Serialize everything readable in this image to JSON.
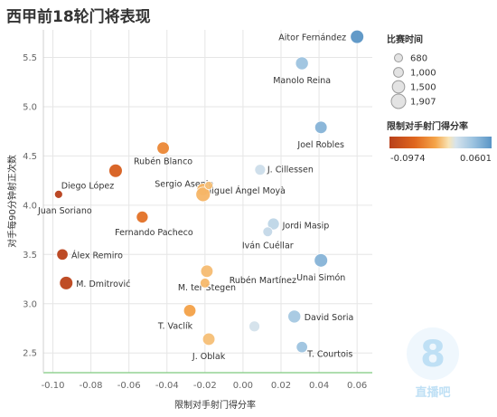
{
  "page": {
    "title": "西甲前18轮门将表现"
  },
  "watermark": {
    "digit": "8",
    "text": "直播吧"
  },
  "chart_data": {
    "type": "scatter",
    "title": "西甲前18轮门将表现",
    "xlabel": "限制对手射门得分率",
    "ylabel": "对手每90分钟射正次数",
    "xlim": [
      -0.105,
      0.068
    ],
    "ylim": [
      2.3,
      5.78
    ],
    "xticks": [
      -0.1,
      -0.08,
      -0.06,
      -0.04,
      -0.02,
      0.0,
      0.02,
      0.04,
      0.06
    ],
    "xtick_labels": [
      "-0.10",
      "-0.08",
      "-0.06",
      "-0.04",
      "-0.02",
      "0.00",
      "0.02",
      "0.04",
      "0.06"
    ],
    "yticks": [
      2.5,
      3.0,
      3.5,
      4.0,
      4.5,
      5.0,
      5.5
    ],
    "ytick_labels": [
      "2.5",
      "3.0",
      "3.5",
      "4.0",
      "4.5",
      "5.0",
      "5.5"
    ],
    "grid": true,
    "size_legend": {
      "title": "比赛时间",
      "values": [
        680,
        1000,
        1500,
        1907
      ],
      "labels": [
        "680",
        "1,000",
        "1,500",
        "1,907"
      ]
    },
    "color_legend": {
      "title": "限制对手射门得分率",
      "min": -0.0974,
      "max": 0.0601,
      "min_label": "-0.0974",
      "max_label": "0.0601",
      "colors": [
        "#b8401b",
        "#e0671f",
        "#f5a54a",
        "#f8e4b6",
        "#d6e3ec",
        "#9cc3e0",
        "#5a95c6"
      ]
    },
    "points": [
      {
        "name": "Aitor Fernández",
        "x": 0.06,
        "y": 5.71,
        "minutes": 1700
      },
      {
        "name": "Manolo Reina",
        "x": 0.031,
        "y": 5.44,
        "minutes": 1600
      },
      {
        "name": "Joel Robles",
        "x": 0.041,
        "y": 4.79,
        "minutes": 1500
      },
      {
        "name": "Rubén Blanco",
        "x": -0.042,
        "y": 4.58,
        "minutes": 1500
      },
      {
        "name": "J. Cillessen",
        "x": 0.009,
        "y": 4.36,
        "minutes": 1200
      },
      {
        "name": "Diego López",
        "x": -0.067,
        "y": 4.35,
        "minutes": 1700
      },
      {
        "name": "Sergio Asenjo",
        "x": -0.021,
        "y": 4.16,
        "minutes": 1500
      },
      {
        "name": "Sergio Asenjo 2",
        "x": -0.021,
        "y": 4.11,
        "minutes": 1900
      },
      {
        "name": "Sergio Asenjo 3",
        "x": -0.018,
        "y": 4.2,
        "minutes": 700
      },
      {
        "name": "Juan Soriano",
        "x": -0.097,
        "y": 4.11,
        "minutes": 680
      },
      {
        "name": "Fernando Pacheco",
        "x": -0.053,
        "y": 3.88,
        "minutes": 1400
      },
      {
        "name": "Jordi Masip",
        "x": 0.016,
        "y": 3.81,
        "minutes": 1400
      },
      {
        "name": "Iván Cuéllar",
        "x": 0.013,
        "y": 3.73,
        "minutes": 1000
      },
      {
        "name": "Álex Remiro",
        "x": -0.095,
        "y": 3.5,
        "minutes": 1300
      },
      {
        "name": "Unai Simón",
        "x": 0.041,
        "y": 3.44,
        "minutes": 1700
      },
      {
        "name": "M. ter Stegen",
        "x": -0.019,
        "y": 3.33,
        "minutes": 1500
      },
      {
        "name": "M. Dmitrović",
        "x": -0.093,
        "y": 3.21,
        "minutes": 1700
      },
      {
        "name": "Rubén Martínez",
        "x": -0.02,
        "y": 3.21,
        "minutes": 1000
      },
      {
        "name": "T. Vaclík",
        "x": -0.028,
        "y": 2.93,
        "minutes": 1500
      },
      {
        "name": "David Soria",
        "x": 0.027,
        "y": 2.87,
        "minutes": 1600
      },
      {
        "name": "Unlabeled",
        "x": 0.006,
        "y": 2.77,
        "minutes": 1200
      },
      {
        "name": "J. Oblak",
        "x": -0.018,
        "y": 2.64,
        "minutes": 1500
      },
      {
        "name": "T. Courtois",
        "x": 0.031,
        "y": 2.56,
        "minutes": 1300
      }
    ],
    "labels": [
      {
        "text": "Aitor Fernández",
        "for": "Aitor Fernández"
      },
      {
        "text": "Manolo Reina",
        "for": "Manolo Reina"
      },
      {
        "text": "Joel Robles",
        "for": "Joel Robles"
      },
      {
        "text": "Rubén Blanco",
        "for": "Rubén Blanco"
      },
      {
        "text": "J. Cillessen",
        "for": "J. Cillessen"
      },
      {
        "text": "Diego López",
        "for": "Diego López"
      },
      {
        "text": "Sergio Asenjo",
        "for": "Sergio Asenjo"
      },
      {
        "text": "Miguel Ángel Moyà",
        "for": "Sergio Asenjo 3"
      },
      {
        "text": "Juan Soriano",
        "for": "Juan Soriano"
      },
      {
        "text": "Fernando Pacheco",
        "for": "Fernando Pacheco"
      },
      {
        "text": "Jordi Masip",
        "for": "Jordi Masip"
      },
      {
        "text": "Iván Cuéllar",
        "for": "Iván Cuéllar"
      },
      {
        "text": "Álex Remiro",
        "for": "Álex Remiro"
      },
      {
        "text": "Unai Simón",
        "for": "Unai Simón"
      },
      {
        "text": "M. ter Stegen",
        "for": "M. ter Stegen"
      },
      {
        "text": "M. Dmitrović",
        "for": "M. Dmitrović"
      },
      {
        "text": "Rubén Martínez",
        "for": "Rubén Martínez"
      },
      {
        "text": "T. Vaclík",
        "for": "T. Vaclík"
      },
      {
        "text": "David Soria",
        "for": "David Soria"
      },
      {
        "text": "J. Oblak",
        "for": "J. Oblak"
      },
      {
        "text": "T. Courtois",
        "for": "T. Courtois"
      }
    ]
  }
}
